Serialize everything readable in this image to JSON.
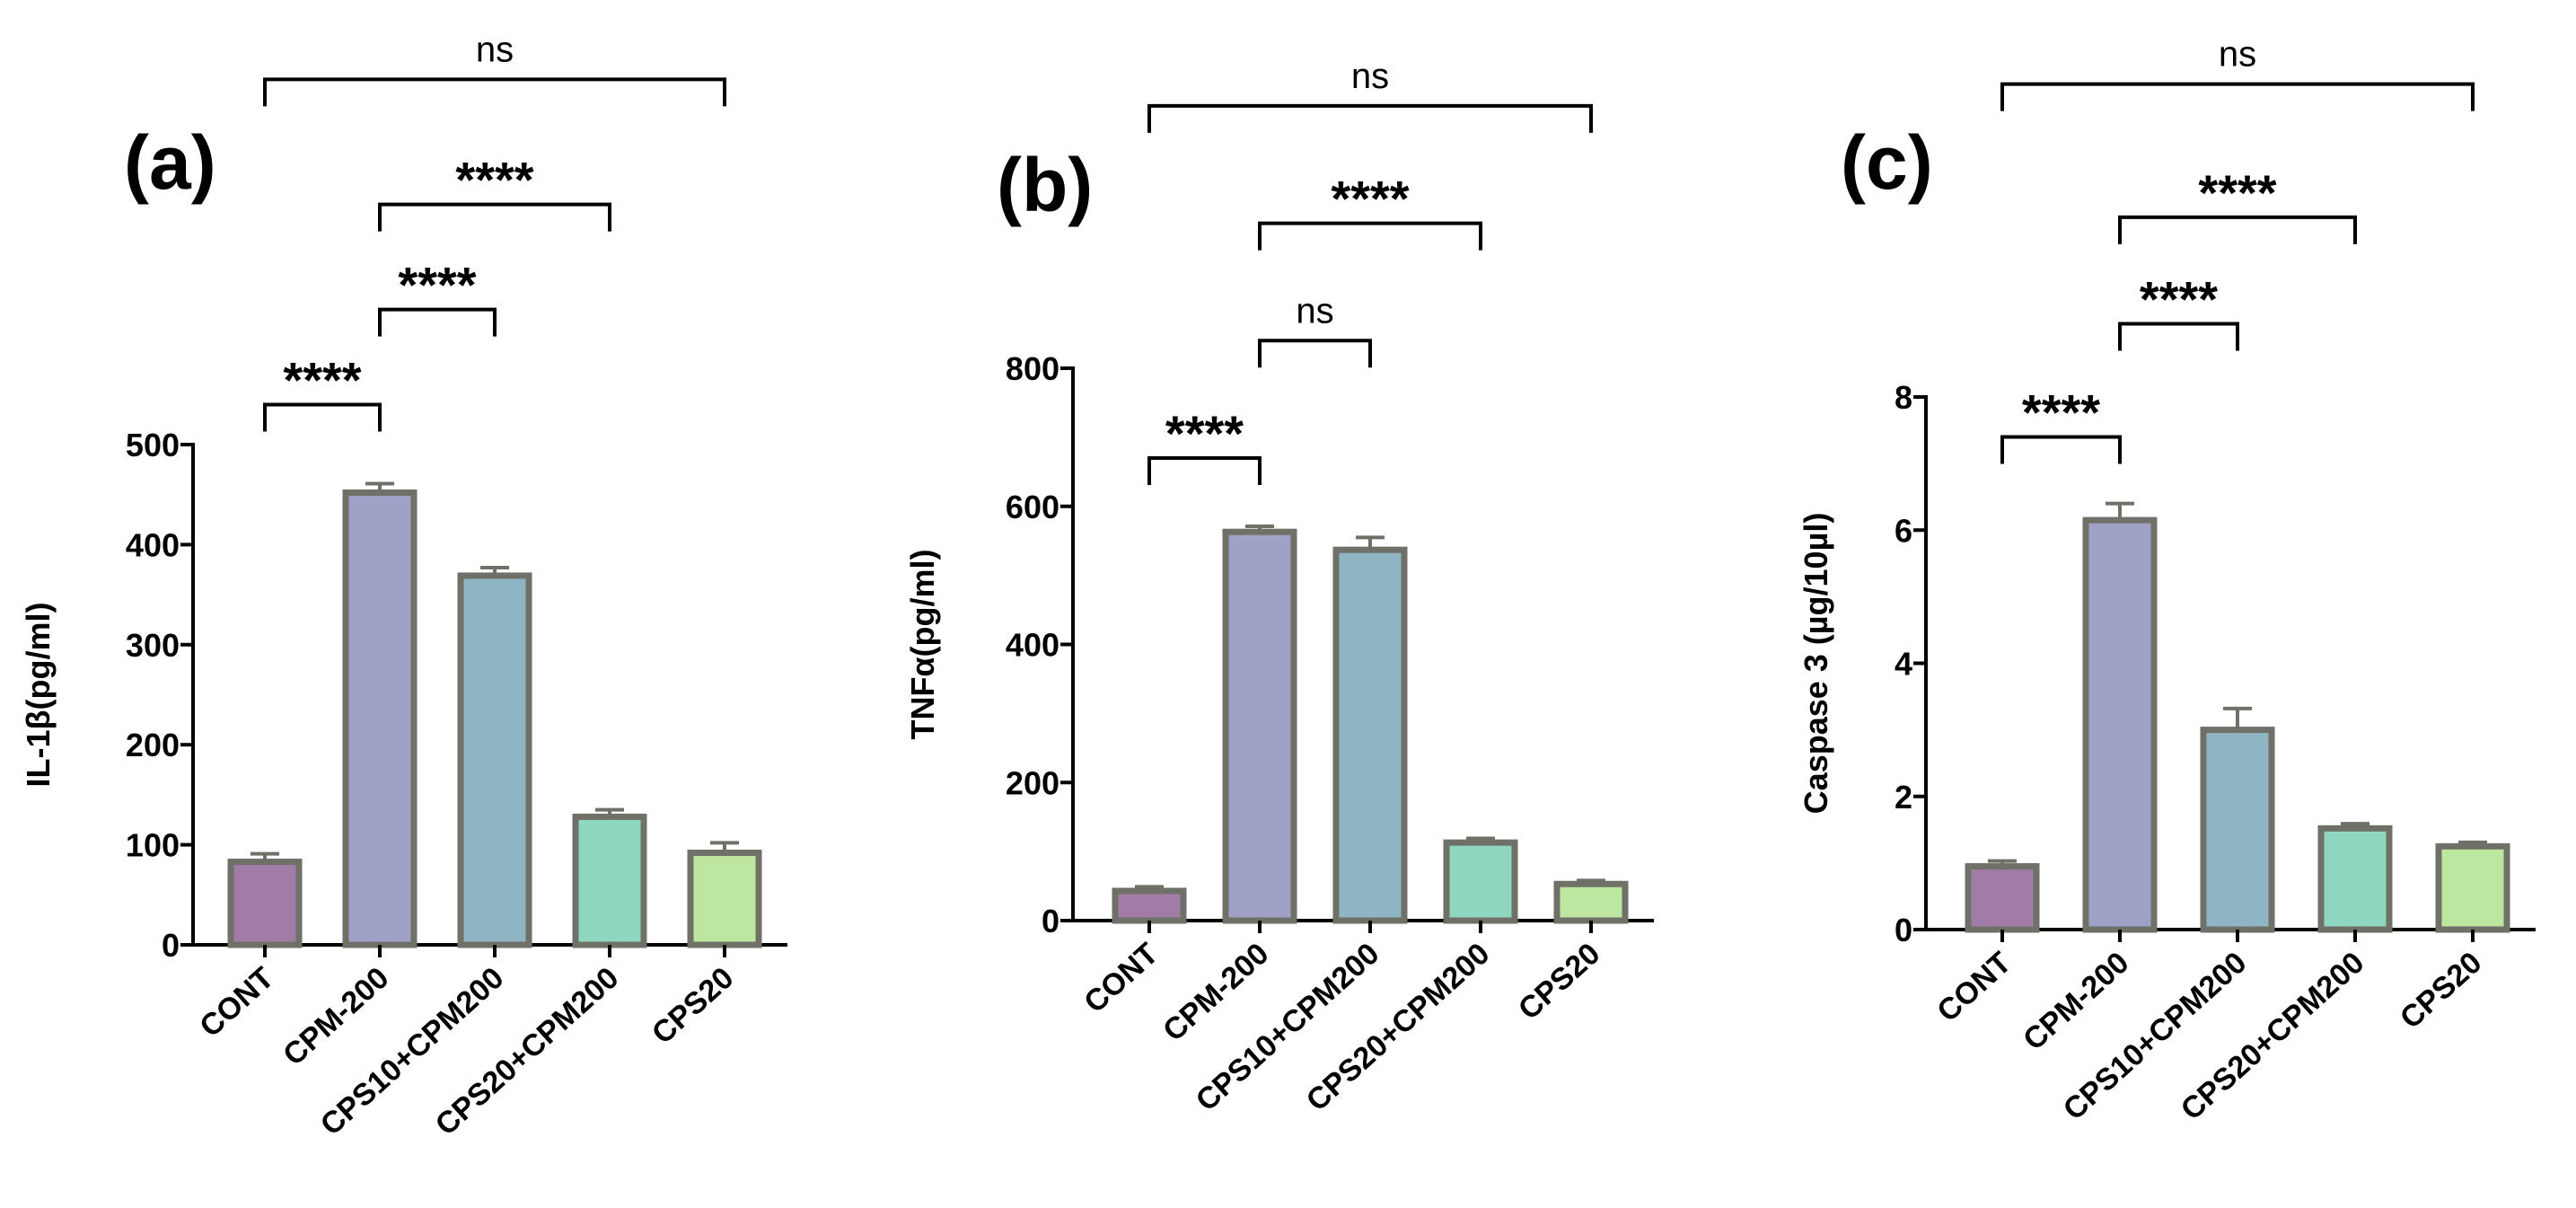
{
  "chart_data": [
    {
      "type": "bar",
      "panel_label": "(a)",
      "ylabel": "IL-1β(pg/ml)",
      "categories": [
        "CONT",
        "CPM-200",
        "CPS10+CPM200",
        "CPS20+CPM200",
        "CPS20"
      ],
      "values": [
        83,
        452,
        369,
        128,
        92
      ],
      "errors": [
        8,
        9,
        8,
        7,
        10
      ],
      "ylim": [
        0,
        500
      ],
      "yticks": [
        0,
        100,
        200,
        300,
        400,
        500
      ],
      "tick_labels": [
        "0",
        "100",
        "200",
        "300",
        "400",
        "500"
      ],
      "colors": [
        "#a07ca6",
        "#9fa1c6",
        "#8fb4c4",
        "#8fd6c0",
        "#bde6a0"
      ],
      "significance": [
        {
          "from": 0,
          "to": 1,
          "label": "****",
          "level": 540
        },
        {
          "from": 1,
          "to": 2,
          "label": "****",
          "level": 635
        },
        {
          "from": 1,
          "to": 3,
          "label": "****",
          "level": 740
        },
        {
          "from": 0,
          "to": 4,
          "label": "ns",
          "level": 865
        }
      ]
    },
    {
      "type": "bar",
      "panel_label": "(b)",
      "ylabel": "TNFα(pg/ml)",
      "categories": [
        "CONT",
        "CPM-200",
        "CPS10+CPM200",
        "CPS20+CPM200",
        "CPS20"
      ],
      "values": [
        43,
        563,
        537,
        113,
        53
      ],
      "errors": [
        6,
        8,
        18,
        6,
        5
      ],
      "ylim": [
        0,
        800
      ],
      "yticks": [
        0,
        200,
        400,
        600,
        800
      ],
      "tick_labels": [
        "0",
        "200",
        "400",
        "600",
        "800"
      ],
      "colors": [
        "#a07ca6",
        "#9fa1c6",
        "#8fb4c4",
        "#8fd6c0",
        "#bde6a0"
      ],
      "significance": [
        {
          "from": 0,
          "to": 1,
          "label": "****",
          "level": 670
        },
        {
          "from": 1,
          "to": 2,
          "label": "ns",
          "level": 840
        },
        {
          "from": 1,
          "to": 3,
          "label": "****",
          "level": 1010
        },
        {
          "from": 0,
          "to": 4,
          "label": "ns",
          "level": 1180
        }
      ]
    },
    {
      "type": "bar",
      "panel_label": "(c)",
      "ylabel": "Caspase 3 (µg/10µl)",
      "categories": [
        "CONT",
        "CPM-200",
        "CPS10+CPM200",
        "CPS20+CPM200",
        "CPS20"
      ],
      "values": [
        0.95,
        6.15,
        3.0,
        1.52,
        1.25
      ],
      "errors": [
        0.08,
        0.25,
        0.32,
        0.07,
        0.06
      ],
      "ylim": [
        0,
        8
      ],
      "yticks": [
        0,
        2,
        4,
        6,
        8
      ],
      "tick_labels": [
        "0",
        "2",
        "4",
        "6",
        "8"
      ],
      "colors": [
        "#a07ca6",
        "#9fa1c6",
        "#8fb4c4",
        "#8fd6c0",
        "#bde6a0"
      ],
      "significance": [
        {
          "from": 0,
          "to": 1,
          "label": "****",
          "level": 7.4
        },
        {
          "from": 1,
          "to": 2,
          "label": "****",
          "level": 9.1
        },
        {
          "from": 1,
          "to": 3,
          "label": "****",
          "level": 10.7
        },
        {
          "from": 0,
          "to": 4,
          "label": "ns",
          "level": 12.7
        }
      ]
    }
  ]
}
